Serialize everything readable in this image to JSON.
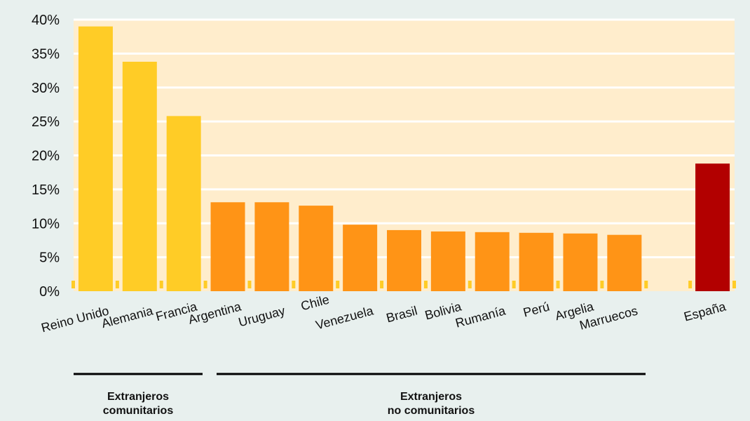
{
  "chart_data": {
    "type": "bar",
    "categories": [
      "Reino Unido",
      "Alemania",
      "Francia",
      "Argentina",
      "Uruguay",
      "Chile",
      "Venezuela",
      "Brasil",
      "Bolivia",
      "Rumanía",
      "Perú",
      "Argelia",
      "Marruecos",
      "",
      "España"
    ],
    "values": [
      39,
      33.8,
      25.8,
      13.1,
      13.1,
      12.6,
      9.8,
      9.0,
      8.8,
      8.7,
      8.6,
      8.5,
      8.3,
      null,
      18.8
    ],
    "bar_groups": [
      "comunitarios",
      "comunitarios",
      "comunitarios",
      "no_comunitarios",
      "no_comunitarios",
      "no_comunitarios",
      "no_comunitarios",
      "no_comunitarios",
      "no_comunitarios",
      "no_comunitarios",
      "no_comunitarios",
      "no_comunitarios",
      "no_comunitarios",
      "none",
      "espana"
    ],
    "colors": {
      "comunitarios": "#ffcc26",
      "no_comunitarios": "#ff9416",
      "espana": "#b20000",
      "plot_background": "#ffedcc",
      "gridline": "#ffffff",
      "minor_marker": "#ffcc26"
    },
    "yticks": [
      "0%",
      "5%",
      "10%",
      "15%",
      "20%",
      "25%",
      "30%",
      "35%",
      "40%"
    ],
    "ylim": [
      0,
      40
    ],
    "grid": true,
    "title": "",
    "xlabel": "",
    "ylabel": ""
  },
  "groups": [
    {
      "label": "Extranjeros\ncomunitarios"
    },
    {
      "label": "Extranjeros\nno comunitarios"
    }
  ]
}
